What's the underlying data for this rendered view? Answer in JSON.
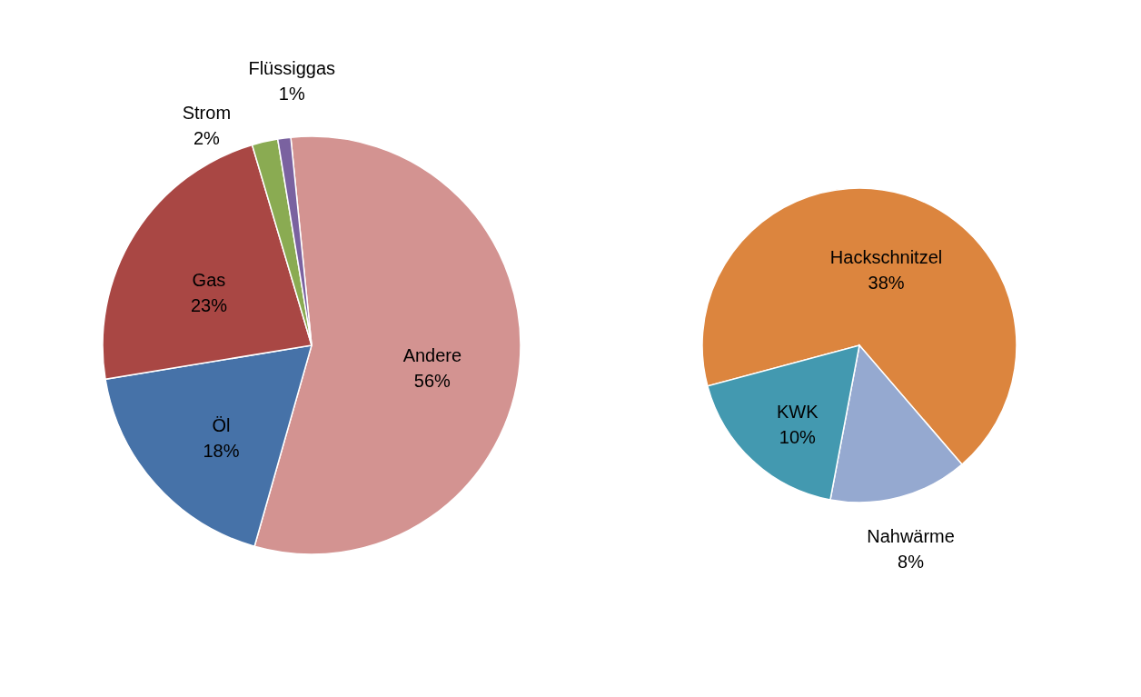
{
  "chart_data": [
    {
      "type": "pie",
      "categories": [
        "Andere",
        "Öl",
        "Gas",
        "Strom",
        "Flüssiggas"
      ],
      "values": [
        56,
        18,
        23,
        2,
        1
      ],
      "value_labels": [
        "56%",
        "18%",
        "23%",
        "2%",
        "1%"
      ],
      "colors": [
        "#d39391",
        "#4672a8",
        "#a94744",
        "#8aab52",
        "#7a62a0"
      ]
    },
    {
      "type": "pie",
      "categories": [
        "Hackschnitzel",
        "Nahwärme",
        "KWK"
      ],
      "values": [
        38,
        8,
        10
      ],
      "value_labels": [
        "38%",
        "8%",
        "10%"
      ],
      "colors": [
        "#dc853e",
        "#95a9d0",
        "#4399b0"
      ]
    }
  ]
}
